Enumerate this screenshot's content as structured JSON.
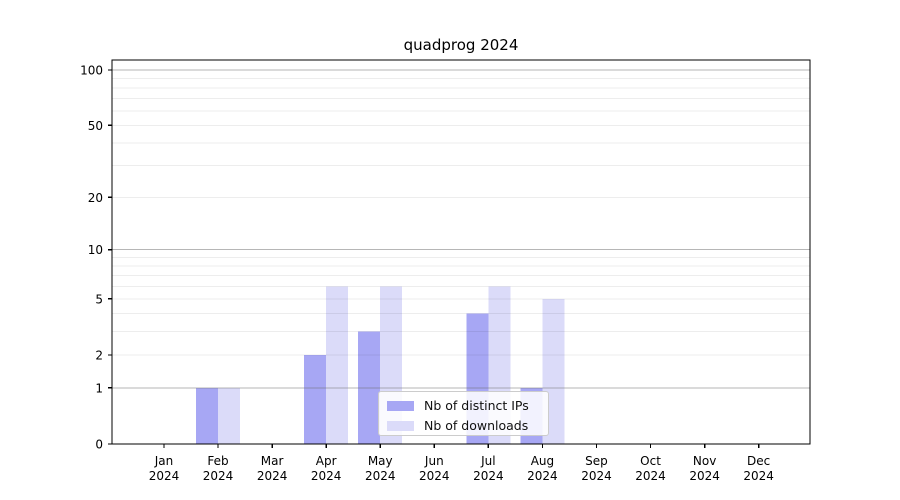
{
  "chart_data": {
    "type": "bar",
    "title": "quadprog 2024",
    "categories": [
      "Jan",
      "Feb",
      "Mar",
      "Apr",
      "May",
      "Jun",
      "Jul",
      "Aug",
      "Sep",
      "Oct",
      "Nov",
      "Dec"
    ],
    "x_year": "2024",
    "series": [
      {
        "key": "distinct-ips",
        "name": "Nb of distinct IPs",
        "color": "#a7a7f4",
        "values": [
          0,
          1,
          0,
          2,
          3,
          0,
          4,
          1,
          0,
          0,
          0,
          0
        ]
      },
      {
        "key": "downloads",
        "name": "Nb of downloads",
        "color": "#dbdbf9",
        "values": [
          0,
          1,
          0,
          6,
          6,
          0,
          6,
          5,
          0,
          0,
          0,
          0
        ]
      }
    ],
    "yticks": [
      0,
      1,
      2,
      5,
      10,
      20,
      50,
      100
    ],
    "ylim": [
      0,
      100
    ],
    "yscale": "log10(1+x)",
    "grid": {
      "on": true,
      "major": [
        1,
        10,
        100
      ],
      "minor": [
        2,
        3,
        4,
        5,
        6,
        7,
        8,
        9,
        20,
        30,
        40,
        50,
        60,
        70,
        80,
        90
      ]
    },
    "legend_position": "lower center"
  }
}
